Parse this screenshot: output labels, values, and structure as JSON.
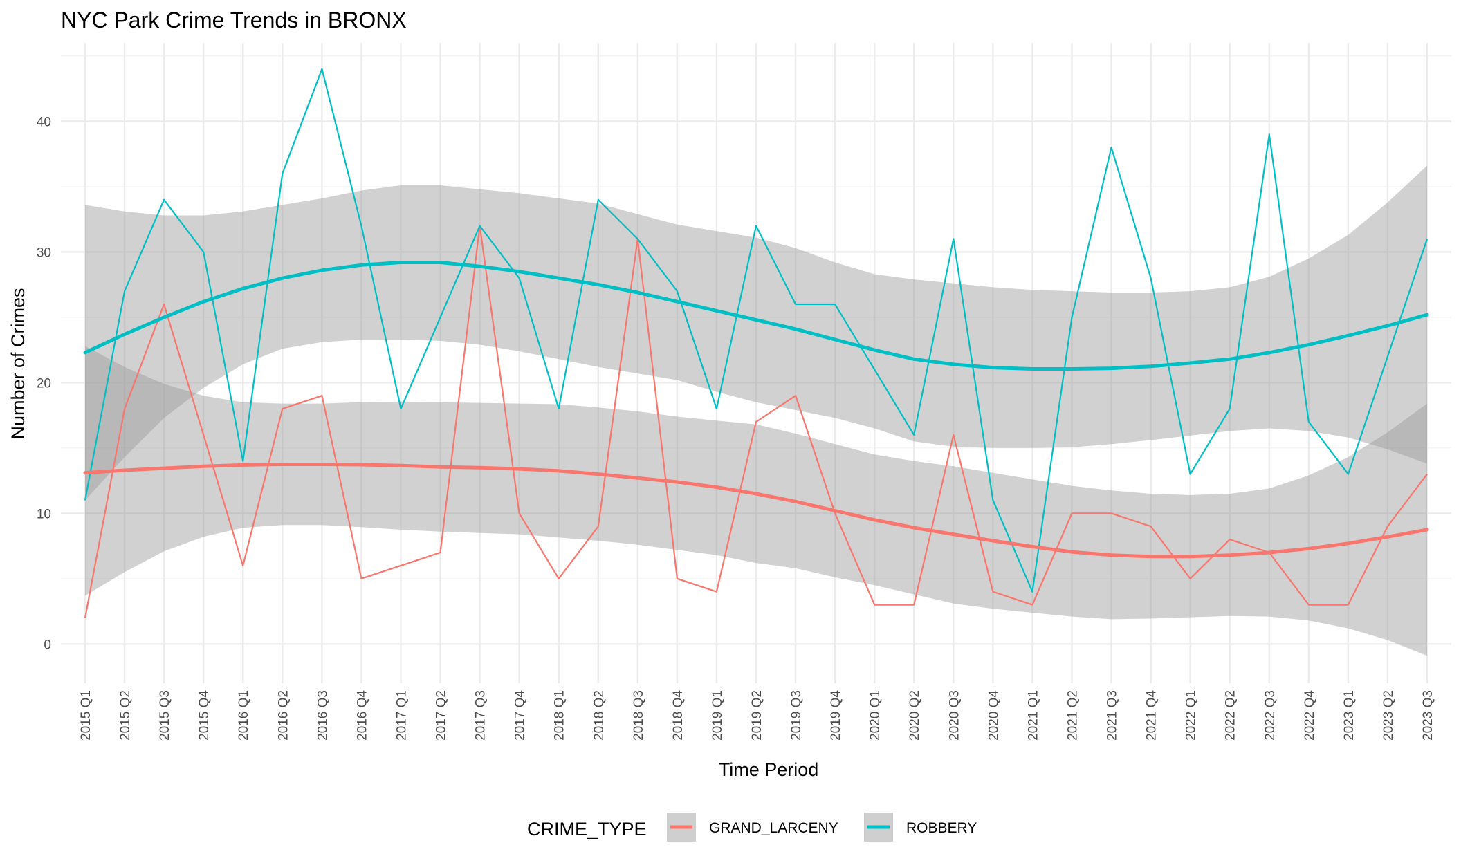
{
  "chart_data": {
    "type": "line",
    "title": "NYC Park Crime Trends in BRONX",
    "xlabel": "Time Period",
    "ylabel": "Number of Crimes",
    "ylim": [
      -3,
      46
    ],
    "yticks": [
      0,
      10,
      20,
      30,
      40
    ],
    "grid": true,
    "legend_position": "bottom",
    "legend_title": "CRIME_TYPE",
    "categories": [
      "2015 Q1",
      "2015 Q2",
      "2015 Q3",
      "2015 Q4",
      "2016 Q1",
      "2016 Q2",
      "2016 Q3",
      "2016 Q4",
      "2017 Q1",
      "2017 Q2",
      "2017 Q3",
      "2017 Q4",
      "2018 Q1",
      "2018 Q2",
      "2018 Q3",
      "2018 Q4",
      "2019 Q1",
      "2019 Q2",
      "2019 Q3",
      "2019 Q4",
      "2020 Q1",
      "2020 Q2",
      "2020 Q3",
      "2020 Q4",
      "2021 Q1",
      "2021 Q2",
      "2021 Q3",
      "2021 Q4",
      "2022 Q1",
      "2022 Q2",
      "2022 Q3",
      "2022 Q4",
      "2023 Q1",
      "2023 Q2",
      "2023 Q3"
    ],
    "series": [
      {
        "name": "GRAND_LARCENY",
        "color": "#F8766D",
        "values": [
          2,
          18,
          26,
          16,
          6,
          18,
          19,
          5,
          6,
          7,
          32,
          10,
          5,
          9,
          31,
          5,
          4,
          17,
          19,
          10,
          3,
          3,
          16,
          4,
          3,
          10,
          10,
          9,
          5,
          8,
          7,
          3,
          3,
          9,
          13
        ],
        "smooth": [
          13.1,
          13.3,
          13.45,
          13.6,
          13.7,
          13.75,
          13.75,
          13.72,
          13.65,
          13.55,
          13.5,
          13.4,
          13.25,
          13.0,
          12.7,
          12.4,
          12.0,
          11.5,
          10.9,
          10.2,
          9.5,
          8.9,
          8.4,
          7.9,
          7.45,
          7.05,
          6.8,
          6.7,
          6.7,
          6.8,
          7.0,
          7.3,
          7.7,
          8.2,
          8.75
        ],
        "band_upper": [
          22.8,
          21.2,
          19.9,
          19.0,
          18.5,
          18.4,
          18.4,
          18.5,
          18.55,
          18.5,
          18.45,
          18.4,
          18.35,
          18.1,
          17.8,
          17.4,
          17.1,
          16.8,
          16.1,
          15.3,
          14.5,
          14.0,
          13.6,
          13.1,
          12.6,
          12.1,
          11.75,
          11.5,
          11.4,
          11.5,
          11.9,
          12.9,
          14.3,
          16.2,
          18.4
        ],
        "band_lower": [
          3.7,
          5.5,
          7.1,
          8.2,
          8.9,
          9.1,
          9.1,
          8.95,
          8.75,
          8.6,
          8.5,
          8.4,
          8.15,
          7.9,
          7.6,
          7.2,
          6.8,
          6.2,
          5.8,
          5.1,
          4.5,
          3.8,
          3.1,
          2.7,
          2.4,
          2.1,
          1.9,
          1.95,
          2.05,
          2.15,
          2.1,
          1.8,
          1.2,
          0.3,
          -0.9
        ]
      },
      {
        "name": "ROBBERY",
        "color": "#00BFC4",
        "values": [
          11,
          27,
          34,
          30,
          14,
          36,
          44,
          32,
          18,
          25,
          32,
          28,
          18,
          34,
          31,
          27,
          18,
          32,
          26,
          26,
          21,
          16,
          31,
          11,
          4,
          25,
          38,
          28,
          13,
          18,
          39,
          17,
          13,
          22,
          31
        ],
        "smooth": [
          22.3,
          23.7,
          25.0,
          26.2,
          27.2,
          28.0,
          28.6,
          29.0,
          29.2,
          29.2,
          28.9,
          28.5,
          28.0,
          27.5,
          26.9,
          26.2,
          25.5,
          24.8,
          24.1,
          23.3,
          22.5,
          21.8,
          21.4,
          21.15,
          21.05,
          21.05,
          21.1,
          21.25,
          21.5,
          21.8,
          22.3,
          22.9,
          23.6,
          24.35,
          25.2
        ],
        "band_upper": [
          33.6,
          33.1,
          32.8,
          32.8,
          33.1,
          33.6,
          34.1,
          34.7,
          35.1,
          35.1,
          34.8,
          34.5,
          34.1,
          33.7,
          32.9,
          32.1,
          31.6,
          31.1,
          30.3,
          29.2,
          28.3,
          27.9,
          27.6,
          27.3,
          27.1,
          27.0,
          26.9,
          26.9,
          27.0,
          27.3,
          28.1,
          29.5,
          31.3,
          33.8,
          36.6
        ],
        "band_lower": [
          11.0,
          14.3,
          17.3,
          19.6,
          21.4,
          22.6,
          23.1,
          23.3,
          23.3,
          23.2,
          22.9,
          22.4,
          21.8,
          21.2,
          20.7,
          20.2,
          19.3,
          18.5,
          17.9,
          17.3,
          16.5,
          15.5,
          15.1,
          15.0,
          15.0,
          15.05,
          15.3,
          15.6,
          15.95,
          16.3,
          16.5,
          16.3,
          15.8,
          14.9,
          13.8
        ]
      }
    ]
  }
}
